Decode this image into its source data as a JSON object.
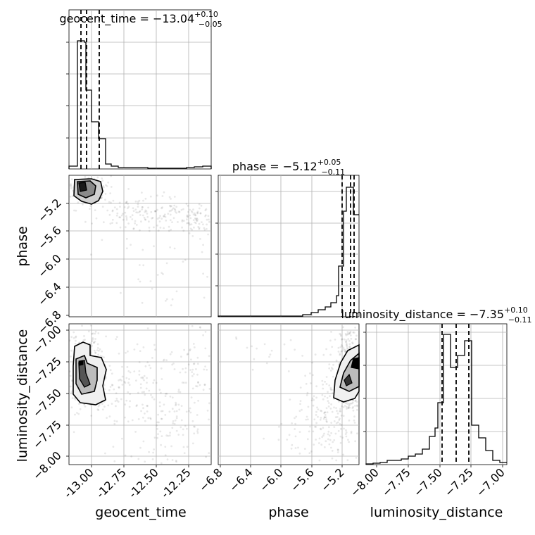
{
  "chart_data": {
    "type": "corner",
    "parameters": [
      {
        "name": "geocent_time",
        "label": "geocent_time",
        "range": [
          -13.16,
          -12.16
        ],
        "ticks": [
          "-13.00",
          "-12.75",
          "-12.50",
          "-12.25"
        ],
        "tick_values": [
          -13.0,
          -12.75,
          -12.5,
          -12.25
        ],
        "title_prefix": "geocent_time = −13.04",
        "title_sup": "+0.10",
        "title_sub": "−0.05",
        "quantiles": [
          -13.09,
          -13.04,
          -12.94
        ],
        "hist": {
          "bins": [
            -13.16,
            -13.11,
            -13.06,
            -13.01,
            -12.96,
            -12.91,
            -12.86,
            -12.81,
            -12.76,
            -12.71,
            -12.66,
            -12.61,
            -12.56,
            -12.51,
            -12.46,
            -12.41,
            -12.36,
            -12.31,
            -12.26,
            -12.21,
            -12.16
          ],
          "counts": [
            4,
            180,
            178,
            112,
            60,
            42,
            8,
            4,
            2,
            2,
            2,
            1,
            1,
            1,
            1,
            1,
            1,
            1,
            2,
            4
          ]
        }
      },
      {
        "name": "phase",
        "label": "phase",
        "range": [
          -6.84,
          -4.98
        ],
        "ticks": [
          "−6.8",
          "−6.4",
          "−6.0",
          "−5.6",
          "−5.2"
        ],
        "tick_values": [
          -6.8,
          -6.4,
          -6.0,
          -5.6,
          -5.2
        ],
        "title_prefix": "phase = −5.12",
        "title_sup": "+0.05",
        "title_sub": "−0.11",
        "quantiles": [
          -5.23,
          -5.12,
          -5.07
        ],
        "hist": {
          "bins": [
            -6.84,
            -6.747,
            -6.654,
            -6.561,
            -6.468,
            -6.375,
            -6.282,
            -6.189,
            -6.096,
            -6.003,
            -5.91,
            -5.817,
            -5.724,
            -5.631,
            -5.538,
            -5.445,
            -5.352,
            -5.259,
            -5.166,
            -5.073,
            -4.98
          ],
          "counts": [
            0,
            0,
            0,
            0,
            0,
            0,
            0,
            0,
            0,
            0,
            0,
            0,
            1,
            2,
            3,
            5,
            9,
            40,
            180,
            160
          ]
        }
      },
      {
        "name": "luminosity_distance",
        "label": "luminosity_distance",
        "range": [
          -8.09,
          -6.97
        ],
        "ticks": [
          "−8.00",
          "−7.75",
          "−7.50",
          "−7.25",
          "−7.00"
        ],
        "tick_values": [
          -8.0,
          -7.75,
          -7.5,
          -7.25,
          -7.0
        ],
        "title_prefix": "luminosity_distance = −7.35",
        "title_sup": "+0.10",
        "title_sub": "−0.11",
        "quantiles": [
          -7.46,
          -7.35,
          -7.25
        ],
        "hist": {
          "bins": [
            -8.09,
            -8.034,
            -7.978,
            -7.922,
            -7.866,
            -7.81,
            -7.754,
            -7.698,
            -7.642,
            -7.586,
            -7.53,
            -7.474,
            -7.418,
            -7.362,
            -7.306,
            -7.25,
            -7.194,
            -7.138,
            -7.082,
            -7.026,
            -6.97
          ],
          "counts": [
            1,
            2,
            4,
            8,
            10,
            18,
            30,
            55,
            100,
            168,
            145,
            150,
            155,
            150,
            60,
            40,
            20,
            8,
            4,
            2
          ]
        }
      }
    ],
    "pairs": [
      {
        "x": "geocent_time",
        "y": "phase"
      },
      {
        "x": "geocent_time",
        "y": "luminosity_distance"
      },
      {
        "x": "phase",
        "y": "luminosity_distance"
      }
    ],
    "grid": true
  },
  "y_labels": {
    "phase": "phase",
    "luminosity_distance": "luminosity_distance"
  },
  "y_ticks": {
    "phase": [
      "−5.2",
      "−5.6",
      "−6.0",
      "−6.4",
      "−6.8"
    ],
    "luminosity_distance": [
      "−7.00",
      "−7.25",
      "−7.50",
      "−7.75",
      "−8.00"
    ]
  }
}
